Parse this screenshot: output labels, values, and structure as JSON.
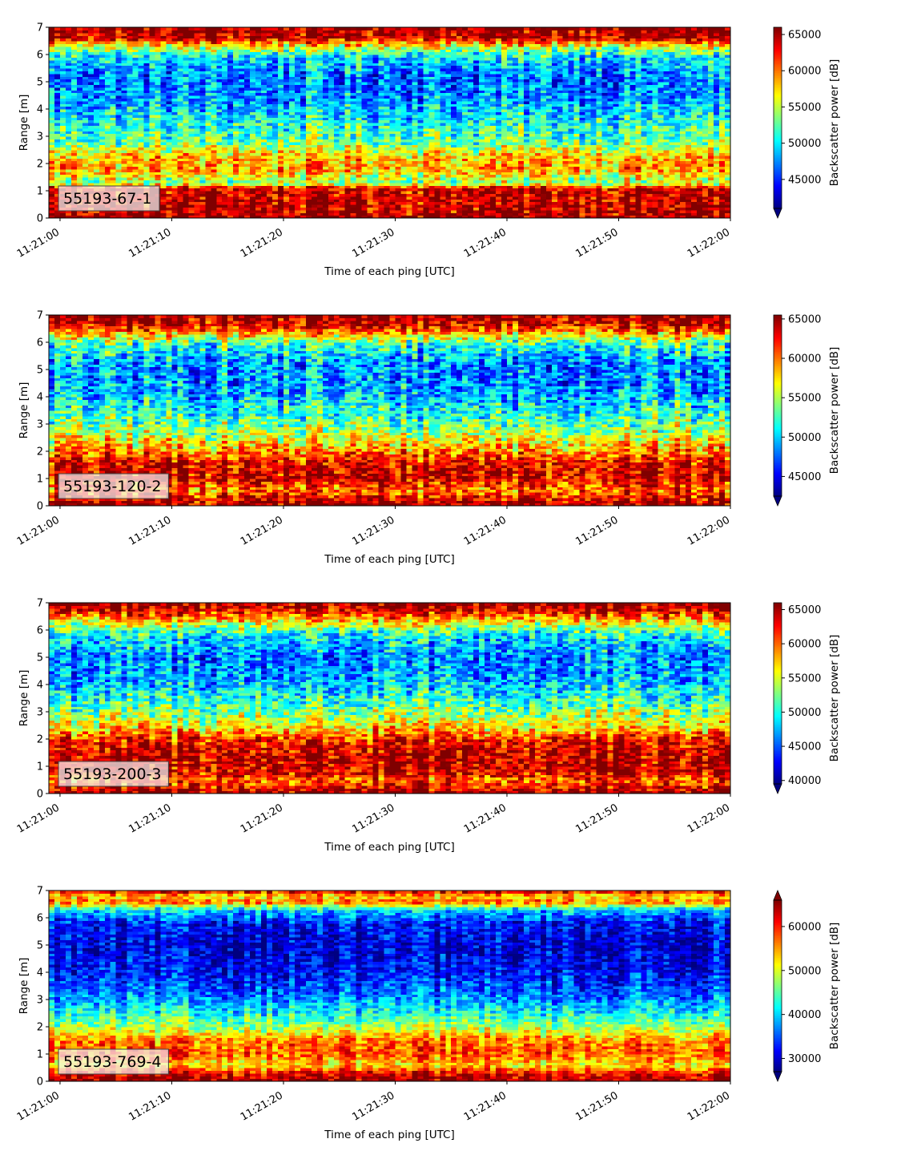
{
  "chart_data": [
    {
      "type": "heatmap",
      "label": "55193-67-1",
      "xlabel": "Time of each ping [UTC]",
      "ylabel": "Range [m]",
      "colorbar_label": "Backscatter power [dB]",
      "x_ticks": [
        "11:21:00",
        "11:21:10",
        "11:21:20",
        "11:21:30",
        "11:21:40",
        "11:21:50",
        "11:22:00"
      ],
      "x_range": [
        "11:20:59",
        "11:22:00"
      ],
      "ylim": [
        0,
        7
      ],
      "y_ticks": [
        0,
        1,
        2,
        3,
        4,
        5,
        6,
        7
      ],
      "clim": [
        41000,
        66000
      ],
      "colorbar_ticks": [
        45000,
        50000,
        55000,
        60000,
        65000
      ],
      "colorbar_extend": "min",
      "colormap": "jet",
      "profile": [
        [
          0.0,
          65500
        ],
        [
          0.25,
          64500
        ],
        [
          1.1,
          64000
        ],
        [
          1.3,
          54000
        ],
        [
          1.5,
          56000
        ],
        [
          1.8,
          59000
        ],
        [
          2.3,
          58000
        ],
        [
          2.8,
          53000
        ],
        [
          3.5,
          51000
        ],
        [
          4.3,
          48000
        ],
        [
          5.2,
          47000
        ],
        [
          5.9,
          50000
        ],
        [
          6.3,
          56000
        ],
        [
          6.6,
          64000
        ],
        [
          7.0,
          66000
        ]
      ],
      "noise_amp": 4500
    },
    {
      "type": "heatmap",
      "label": "55193-120-2",
      "xlabel": "Time of each ping [UTC]",
      "ylabel": "Range [m]",
      "colorbar_label": "Backscatter power [dB]",
      "x_ticks": [
        "11:21:00",
        "11:21:10",
        "11:21:20",
        "11:21:30",
        "11:21:40",
        "11:21:50",
        "11:22:00"
      ],
      "x_range": [
        "11:20:59",
        "11:22:00"
      ],
      "ylim": [
        0,
        7
      ],
      "y_ticks": [
        0,
        1,
        2,
        3,
        4,
        5,
        6,
        7
      ],
      "clim": [
        42500,
        65500
      ],
      "colorbar_ticks": [
        45000,
        50000,
        55000,
        60000,
        65000
      ],
      "colorbar_extend": "min",
      "colormap": "jet",
      "profile": [
        [
          0.0,
          65500
        ],
        [
          0.2,
          64000
        ],
        [
          0.6,
          60000
        ],
        [
          1.0,
          64000
        ],
        [
          1.6,
          63000
        ],
        [
          2.1,
          59000
        ],
        [
          2.7,
          55000
        ],
        [
          3.5,
          51500
        ],
        [
          4.3,
          49000
        ],
        [
          5.2,
          48500
        ],
        [
          5.9,
          52000
        ],
        [
          6.3,
          58000
        ],
        [
          6.6,
          63000
        ],
        [
          7.0,
          65500
        ]
      ],
      "noise_amp": 4500
    },
    {
      "type": "heatmap",
      "label": "55193-200-3",
      "xlabel": "Time of each ping [UTC]",
      "ylabel": "Range [m]",
      "colorbar_label": "Backscatter power [dB]",
      "x_ticks": [
        "11:21:00",
        "11:21:10",
        "11:21:20",
        "11:21:30",
        "11:21:40",
        "11:21:50",
        "11:22:00"
      ],
      "x_range": [
        "11:20:59",
        "11:22:00"
      ],
      "ylim": [
        0,
        7
      ],
      "y_ticks": [
        0,
        1,
        2,
        3,
        4,
        5,
        6,
        7
      ],
      "clim": [
        39500,
        66000
      ],
      "colorbar_ticks": [
        40000,
        45000,
        50000,
        55000,
        60000,
        65000
      ],
      "colorbar_extend": "min",
      "colormap": "jet",
      "profile": [
        [
          0.0,
          66000
        ],
        [
          0.3,
          62000
        ],
        [
          0.5,
          60000
        ],
        [
          0.8,
          64000
        ],
        [
          1.5,
          64000
        ],
        [
          2.0,
          62000
        ],
        [
          2.5,
          56000
        ],
        [
          3.3,
          51000
        ],
        [
          4.2,
          47000
        ],
        [
          5.0,
          46000
        ],
        [
          5.8,
          49000
        ],
        [
          6.3,
          56000
        ],
        [
          6.7,
          63000
        ],
        [
          7.0,
          66000
        ]
      ],
      "noise_amp": 5000
    },
    {
      "type": "heatmap",
      "label": "55193-769-4",
      "xlabel": "Time of each ping [UTC]",
      "ylabel": "Range [m]",
      "colorbar_label": "Backscatter power [dB]",
      "x_ticks": [
        "11:21:00",
        "11:21:10",
        "11:21:20",
        "11:21:30",
        "11:21:40",
        "11:21:50",
        "11:22:00"
      ],
      "x_range": [
        "11:20:59",
        "11:22:00"
      ],
      "ylim": [
        0,
        7
      ],
      "y_ticks": [
        0,
        1,
        2,
        3,
        4,
        5,
        6,
        7
      ],
      "clim": [
        27000,
        66000
      ],
      "colorbar_ticks": [
        30000,
        40000,
        50000,
        60000
      ],
      "colorbar_extend": "both",
      "colormap": "jet",
      "profile": [
        [
          0.0,
          65000
        ],
        [
          0.3,
          62000
        ],
        [
          0.6,
          52000
        ],
        [
          1.0,
          58000
        ],
        [
          1.5,
          56000
        ],
        [
          2.0,
          48000
        ],
        [
          2.5,
          42000
        ],
        [
          3.2,
          36000
        ],
        [
          4.0,
          32000
        ],
        [
          5.0,
          30000
        ],
        [
          5.8,
          32000
        ],
        [
          6.3,
          40000
        ],
        [
          6.6,
          58000
        ],
        [
          6.8,
          52000
        ],
        [
          7.0,
          63000
        ]
      ],
      "noise_amp": 5500
    }
  ]
}
